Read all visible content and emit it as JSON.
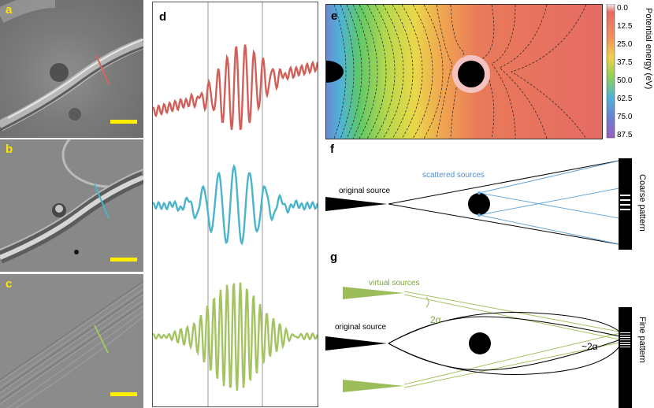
{
  "panels": {
    "a": {
      "label": "a",
      "line_color": "#d9645c"
    },
    "b": {
      "label": "b",
      "line_color": "#4bb4c8"
    },
    "c": {
      "label": "c",
      "line_color": "#a4c85a"
    },
    "d": {
      "label": "d"
    },
    "e": {
      "label": "e",
      "colorbar_title": "Potential energy  (eV)",
      "ticks": [
        "0.0",
        "12.5",
        "25.0",
        "37.5",
        "50.0",
        "62.5",
        "75.0",
        "87.5"
      ]
    },
    "f": {
      "label": "f",
      "original_source": "original source",
      "scattered_sources": "scattered sources",
      "side_label": "Coarse pattern"
    },
    "g": {
      "label": "g",
      "original_source": "original source",
      "virtual_sources": "virtual sources",
      "angle_label": "2α",
      "angle_label2": "~2α",
      "side_label": "Fine pattern"
    }
  },
  "colors": {
    "scale_bar": "#ffee00",
    "label_yellow": "#ffe600",
    "red": "#d0605a",
    "blue": "#4bb4c8",
    "green": "#a4c463",
    "field": "#e56b64"
  }
}
